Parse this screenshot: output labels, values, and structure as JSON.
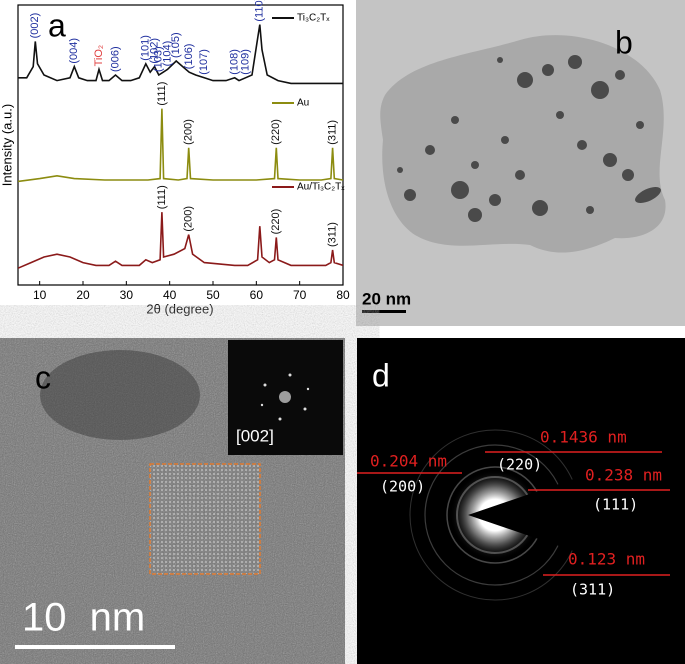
{
  "chart_data": {
    "type": "line",
    "panel_label": "a",
    "xlabel": "2θ (degree)",
    "ylabel": "Intensity (a.u.)",
    "xlim": [
      5,
      80
    ],
    "xticks": [
      10,
      20,
      30,
      40,
      50,
      60,
      70,
      80
    ],
    "ylim": [
      0,
      100
    ],
    "series": [
      {
        "name": "Ti₃C₂Tₓ",
        "color": "#111111",
        "x": [
          5,
          7,
          8.5,
          9,
          9.5,
          11,
          14,
          17,
          18,
          19,
          21,
          23,
          23.7,
          24.5,
          26,
          27.5,
          29,
          31,
          33,
          34.5,
          35.5,
          36.5,
          37.5,
          38.5,
          39.5,
          41.5,
          43,
          44.5,
          46,
          48,
          50,
          53,
          55,
          56,
          57.5,
          59,
          60.3,
          60.8,
          61.3,
          62.5,
          65,
          68,
          72,
          76,
          80
        ],
        "values": [
          74,
          74,
          78,
          87,
          79,
          75,
          73,
          74,
          78,
          74,
          73,
          73,
          77,
          73,
          73,
          75,
          73,
          73,
          74,
          79,
          76,
          78,
          75,
          76,
          77,
          80,
          78,
          76,
          75,
          74,
          73,
          73,
          74,
          73,
          74,
          75,
          88,
          93,
          84,
          75,
          73,
          72,
          72,
          72,
          72
        ]
      },
      {
        "name": "Au",
        "color": "#8c8c10",
        "x": [
          5,
          10,
          14,
          18,
          25,
          30,
          35,
          37.8,
          38.2,
          38.6,
          42,
          44,
          44.4,
          44.8,
          50,
          55,
          60,
          64.2,
          64.6,
          65,
          70,
          75,
          77.2,
          77.6,
          78,
          80
        ],
        "values": [
          37,
          38,
          39,
          38,
          37.5,
          37.5,
          37.5,
          38,
          63,
          38,
          37.5,
          38,
          49,
          38,
          37.5,
          37.5,
          37.5,
          38,
          49,
          38,
          37.5,
          37.5,
          38,
          49,
          38,
          37.5
        ]
      },
      {
        "name": "Au/Ti₃C₂Tₓ",
        "color": "#8b1a1a",
        "x": [
          5,
          8,
          11,
          14,
          17,
          20,
          23,
          26,
          27.5,
          29,
          33,
          34.5,
          36,
          37.8,
          38.2,
          38.6,
          41,
          43.5,
          44.4,
          45.3,
          48,
          55,
          58,
          60.3,
          60.8,
          61.3,
          63,
          64.2,
          64.6,
          65,
          68,
          72,
          76,
          77.2,
          77.6,
          78,
          80
        ],
        "values": [
          6,
          8,
          10,
          11,
          10,
          8,
          7,
          7,
          8.5,
          7,
          7,
          9,
          8,
          9,
          26,
          10,
          11,
          13,
          18,
          11,
          8,
          7,
          7,
          9,
          21,
          10,
          8,
          9,
          17,
          9,
          7,
          7,
          7,
          8,
          12.5,
          8,
          7
        ]
      }
    ],
    "annotations": [
      {
        "text": "(002)",
        "x": 9,
        "series": 0,
        "color": "#1f2f9f"
      },
      {
        "text": "(004)",
        "x": 18,
        "series": 0,
        "color": "#1f2f9f"
      },
      {
        "text": "TiO₂",
        "x": 23.7,
        "series": 0,
        "color": "#e04040"
      },
      {
        "text": "(006)",
        "x": 27.5,
        "series": 0,
        "color": "#1f2f9f"
      },
      {
        "text": "(101)",
        "x": 34.5,
        "series": 0,
        "color": "#1f2f9f"
      },
      {
        "text": "(102)",
        "x": 36.5,
        "series": 0,
        "color": "#1f2f9f"
      },
      {
        "text": "(103)",
        "x": 37.5,
        "series": 0,
        "color": "#1f2f9f"
      },
      {
        "text": "(104)",
        "x": 39.5,
        "series": 0,
        "color": "#1f2f9f"
      },
      {
        "text": "(105)",
        "x": 41.5,
        "series": 0,
        "color": "#1f2f9f"
      },
      {
        "text": "(106)",
        "x": 44.5,
        "series": 0,
        "color": "#1f2f9f"
      },
      {
        "text": "(107)",
        "x": 48,
        "series": 0,
        "color": "#1f2f9f"
      },
      {
        "text": "(108)",
        "x": 55,
        "series": 0,
        "color": "#1f2f9f"
      },
      {
        "text": "(109)",
        "x": 57.5,
        "series": 0,
        "color": "#1f2f9f"
      },
      {
        "text": "(110)",
        "x": 60.8,
        "series": 0,
        "color": "#1f2f9f"
      },
      {
        "text": "(111)",
        "x": 38.2,
        "series": 1,
        "color": "#111111"
      },
      {
        "text": "(200)",
        "x": 44.4,
        "series": 1,
        "color": "#111111"
      },
      {
        "text": "(220)",
        "x": 64.6,
        "series": 1,
        "color": "#111111"
      },
      {
        "text": "(311)",
        "x": 77.6,
        "series": 1,
        "color": "#111111"
      },
      {
        "text": "(111)",
        "x": 38.2,
        "series": 2,
        "color": "#111111"
      },
      {
        "text": "(200)",
        "x": 44.4,
        "series": 2,
        "color": "#111111"
      },
      {
        "text": "(220)",
        "x": 64.6,
        "series": 2,
        "color": "#111111"
      },
      {
        "text": "(311)",
        "x": 77.6,
        "series": 2,
        "color": "#111111"
      }
    ]
  },
  "panels": {
    "b": {
      "label": "b",
      "scale_bar": "20 nm"
    },
    "c": {
      "label": "c",
      "inset_label": "[002]",
      "scale_bar": "10 nm"
    },
    "d": {
      "label": "d",
      "annotations": [
        {
          "spacing": "0.1436 nm",
          "plane": "(220)"
        },
        {
          "spacing": "0.204 nm",
          "plane": "(200)"
        },
        {
          "spacing": "0.238 nm",
          "plane": "(111)"
        },
        {
          "spacing": "0.123 nm",
          "plane": "(311)"
        }
      ]
    }
  }
}
